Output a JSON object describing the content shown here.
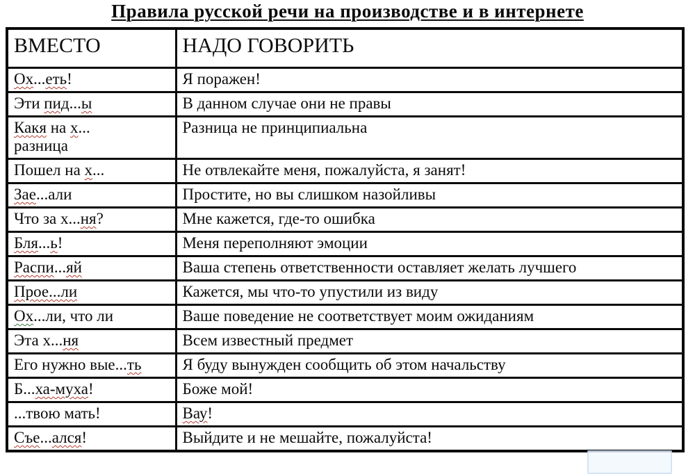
{
  "page": {
    "title": "Правила русской речи на производстве и в интернете"
  },
  "table": {
    "headers": {
      "instead": "ВМЕСТО",
      "say": "НАДО ГОВОРИТЬ"
    },
    "rows": [
      {
        "instead": [
          {
            "t": "Ох",
            "u": "red"
          },
          {
            "t": "..."
          },
          {
            "t": "еть",
            "u": "red"
          },
          {
            "t": "!"
          }
        ],
        "say": [
          {
            "t": "Я поражен!"
          }
        ]
      },
      {
        "instead": [
          {
            "t": "Эти "
          },
          {
            "t": "пид",
            "u": "red"
          },
          {
            "t": "..."
          },
          {
            "t": "ы",
            "u": "red"
          }
        ],
        "say": [
          {
            "t": "В данном случае они не правы"
          }
        ]
      },
      {
        "instead": [
          {
            "t": "Какя",
            "u": "red"
          },
          {
            "t": " на "
          },
          {
            "t": "х",
            "u": "red"
          },
          {
            "t": "...\nразница"
          }
        ],
        "say": [
          {
            "t": "Разница не принципиальна"
          }
        ]
      },
      {
        "instead": [
          {
            "t": "Пошел на "
          },
          {
            "t": "х",
            "u": "red"
          },
          {
            "t": "..."
          }
        ],
        "say": [
          {
            "t": "Не отвлекайте меня, пожалуйста, я занят!"
          }
        ]
      },
      {
        "instead": [
          {
            "t": "Зае",
            "u": "red"
          },
          {
            "t": "...али"
          }
        ],
        "say": [
          {
            "t": "Простите, но вы слишком назойливы"
          }
        ]
      },
      {
        "instead": [
          {
            "t": "Что за х..."
          },
          {
            "t": "ня",
            "u": "red"
          },
          {
            "t": "?"
          }
        ],
        "say": [
          {
            "t": "Мне кажется, где-то ошибка"
          }
        ]
      },
      {
        "instead": [
          {
            "t": "Бля",
            "u": "red"
          },
          {
            "t": "..."
          },
          {
            "t": "ь",
            "u": "red"
          },
          {
            "t": "!"
          }
        ],
        "say": [
          {
            "t": "Меня переполняют эмоции"
          }
        ]
      },
      {
        "instead": [
          {
            "t": "Распи",
            "u": "red"
          },
          {
            "t": "..."
          },
          {
            "t": "яй",
            "u": "red"
          }
        ],
        "say": [
          {
            "t": "Ваша степень ответственности оставляет желать лучшего"
          }
        ]
      },
      {
        "instead": [
          {
            "t": "Прое...ли",
            "u": "red"
          }
        ],
        "say": [
          {
            "t": "Кажется, мы что-то упустили из виду"
          }
        ]
      },
      {
        "instead": [
          {
            "t": "Ох",
            "u": "green"
          },
          {
            "t": "...ли, что ли"
          }
        ],
        "say": [
          {
            "t": "Ваше поведение не соответствует моим ожиданиям"
          }
        ]
      },
      {
        "instead": [
          {
            "t": "Эта х..."
          },
          {
            "t": "ня",
            "u": "red"
          }
        ],
        "say": [
          {
            "t": "Всем известный предмет"
          }
        ]
      },
      {
        "instead": [
          {
            "t": "Его нужно вые..."
          },
          {
            "t": "ть",
            "u": "red"
          }
        ],
        "say": [
          {
            "t": "Я буду вынужден сообщить об этом начальству"
          }
        ]
      },
      {
        "instead": [
          {
            "t": "Б..."
          },
          {
            "t": "ха-муха",
            "u": "red"
          },
          {
            "t": "!"
          }
        ],
        "say": [
          {
            "t": "Боже мой!"
          }
        ]
      },
      {
        "instead": [
          {
            "t": "...твою мать!"
          }
        ],
        "say": [
          {
            "t": "Вау",
            "u": "red"
          },
          {
            "t": "!"
          }
        ]
      },
      {
        "instead": [
          {
            "t": "Съе",
            "u": "red"
          },
          {
            "t": "..."
          },
          {
            "t": "ался",
            "u": "red"
          },
          {
            "t": "!"
          }
        ],
        "say": [
          {
            "t": "Выйдите и не мешайте, пожалуйста!"
          }
        ]
      }
    ]
  },
  "colors": {
    "text": "#0b0b0b",
    "border": "#0a0a0a",
    "squiggle_red": "#b03a2e",
    "squiggle_green": "#3a7d44",
    "watermark_border": "#cfe0f2"
  }
}
